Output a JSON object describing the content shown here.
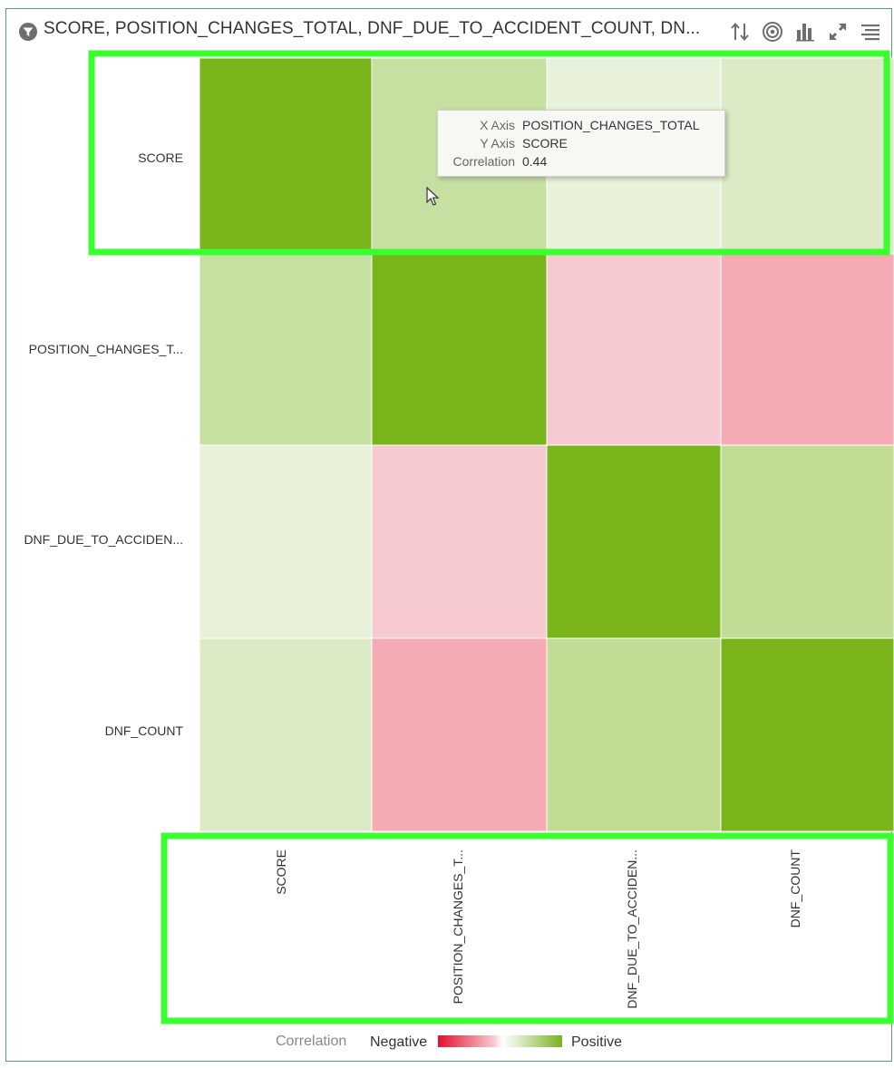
{
  "header": {
    "title": "SCORE, POSITION_CHANGES_TOTAL, DNF_DUE_TO_ACCIDENT_COUNT, DN...",
    "icons": [
      "filter-icon",
      "sort-icon",
      "target-icon",
      "bar-chart-icon",
      "expand-icon",
      "menu-icon"
    ]
  },
  "tooltip": {
    "x_label": "X Axis",
    "x_value": "POSITION_CHANGES_TOTAL",
    "y_label": "Y Axis",
    "y_value": "SCORE",
    "corr_label": "Correlation",
    "corr_value": "0.44"
  },
  "legend": {
    "title": "Correlation",
    "negative_label": "Negative",
    "positive_label": "Positive",
    "negative_color": "#e2102f",
    "positive_color": "#79b11e"
  },
  "chart_data": {
    "type": "heatmap",
    "row_labels": [
      "SCORE",
      "POSITION_CHANGES_T...",
      "DNF_DUE_TO_ACCIDEN...",
      "DNF_COUNT"
    ],
    "col_labels": [
      "SCORE",
      "POSITION_CHANGES_T...",
      "DNF_DUE_TO_ACCIDEN...",
      "DNF_COUNT"
    ],
    "values": [
      [
        1.0,
        0.44,
        0.18,
        0.28
      ],
      [
        0.44,
        1.0,
        -0.22,
        -0.34
      ],
      [
        0.18,
        -0.22,
        1.0,
        0.47
      ],
      [
        0.28,
        -0.34,
        0.47,
        1.0
      ]
    ],
    "colors": [
      [
        "#79b41a",
        "#c6e0a2",
        "#e8f1da",
        "#dcebc5"
      ],
      [
        "#c6e0a2",
        "#79b41a",
        "#f7c9d1",
        "#f5aab4"
      ],
      [
        "#e8f1da",
        "#f7c9d1",
        "#79b41a",
        "#c1dd95"
      ],
      [
        "#dcebc5",
        "#f5aab4",
        "#c1dd95",
        "#79b41a"
      ]
    ],
    "legend": "bottom",
    "highlight_color": "#39ff2e"
  }
}
